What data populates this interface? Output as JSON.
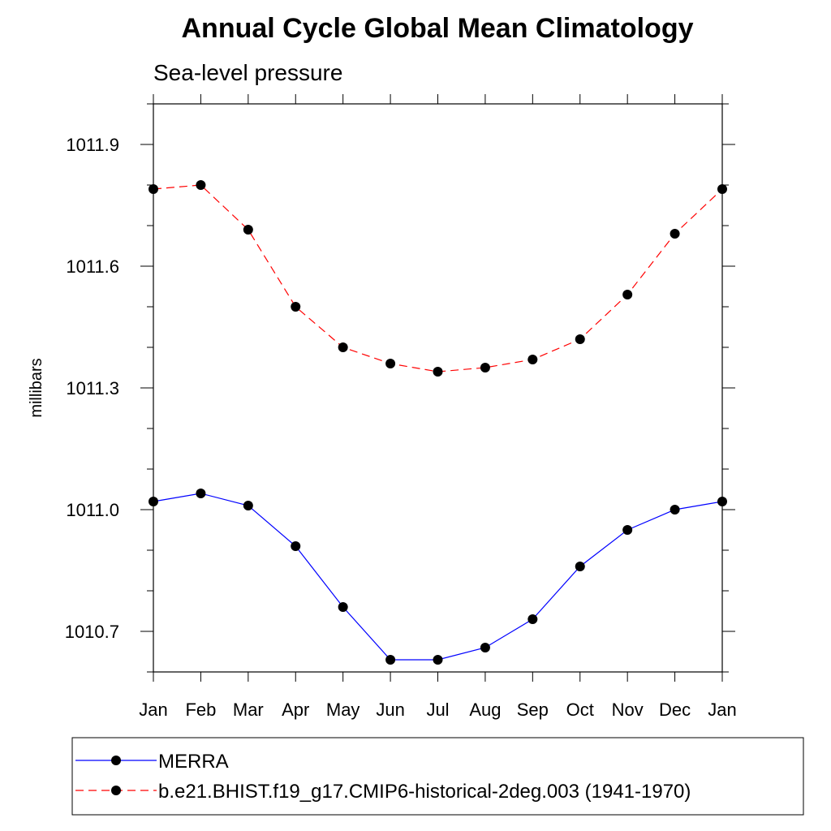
{
  "chart_data": {
    "type": "line",
    "title": "Annual Cycle Global Mean Climatology",
    "subtitle": "Sea-level pressure",
    "xlabel": "",
    "ylabel": "millibars",
    "categories": [
      "Jan",
      "Feb",
      "Mar",
      "Apr",
      "May",
      "Jun",
      "Jul",
      "Aug",
      "Sep",
      "Oct",
      "Nov",
      "Dec",
      "Jan"
    ],
    "ylim": [
      1010.6,
      1012.0
    ],
    "yticks": [
      1010.7,
      1011.0,
      1011.3,
      1011.6,
      1011.9
    ],
    "ytick_labels": [
      "1010.7",
      "1011.0",
      "1011.3",
      "1011.6",
      "1011.9"
    ],
    "grid": false,
    "legend_position": "bottom",
    "series": [
      {
        "name": "MERRA",
        "color": "#0000ff",
        "line_style": "solid",
        "marker": "filled-circle",
        "values": [
          1011.02,
          1011.04,
          1011.01,
          1010.91,
          1010.76,
          1010.63,
          1010.63,
          1010.66,
          1010.73,
          1010.86,
          1010.95,
          1011.0,
          1011.02
        ]
      },
      {
        "name": "b.e21.BHIST.f19_g17.CMIP6-historical-2deg.003 (1941-1970)",
        "color": "#ff0000",
        "line_style": "dashed",
        "marker": "filled-circle",
        "values": [
          1011.79,
          1011.8,
          1011.69,
          1011.5,
          1011.4,
          1011.36,
          1011.34,
          1011.35,
          1011.37,
          1011.42,
          1011.53,
          1011.68,
          1011.79
        ]
      }
    ]
  }
}
